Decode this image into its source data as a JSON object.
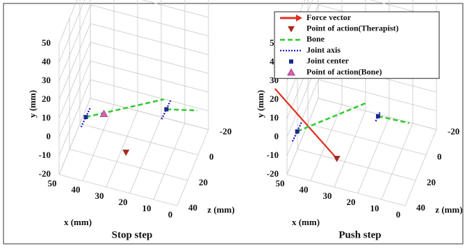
{
  "chart_data": [
    {
      "type": "scatter3d",
      "title": "Stop step",
      "xlabel": "x (mm)",
      "ylabel": "y (mm)",
      "zlabel": "z (mm)",
      "xlim": [
        0,
        50
      ],
      "ylim": [
        -20,
        50
      ],
      "zlim": [
        -20,
        40
      ],
      "xticks": [
        0,
        10,
        20,
        30,
        40,
        50
      ],
      "yticks": [
        -20,
        -10,
        0,
        10,
        20,
        30,
        40,
        50
      ],
      "zticks": [
        -20,
        0,
        20,
        40
      ],
      "series": [
        {
          "name": "Point of action(Therapist)",
          "color": "#a52a1e",
          "marker": "v",
          "x": [
            25
          ],
          "y": [
            -10
          ],
          "z": [
            25
          ]
        },
        {
          "name": "Bone",
          "color": "#33cc33",
          "line": "dashed",
          "x": [
            40,
            10,
            null,
            9,
            -3
          ],
          "y": [
            10,
            20,
            null,
            15,
            15
          ],
          "z": [
            34,
            20,
            null,
            20,
            15
          ]
        },
        {
          "name": "Joint axis",
          "color": "#2222cc",
          "line": "dotted",
          "x": [
            42,
            38,
            null,
            11,
            7
          ],
          "y": [
            4,
            16,
            null,
            9,
            21
          ],
          "z": [
            34,
            34,
            null,
            20,
            20
          ]
        },
        {
          "name": "Joint center",
          "color": "#1a2a8a",
          "marker": "s",
          "x": [
            40,
            9
          ],
          "y": [
            10,
            15
          ],
          "z": [
            34,
            20
          ]
        },
        {
          "name": "Point of action(Bone)",
          "color": "#e060b0",
          "marker": "^",
          "x": [
            33
          ],
          "y": [
            12
          ],
          "z": [
            31
          ]
        }
      ]
    },
    {
      "type": "scatter3d",
      "title": "Push step",
      "xlabel": "x (mm)",
      "ylabel": "y (mm)",
      "zlabel": "z (mm)",
      "xlim": [
        0,
        50
      ],
      "ylim": [
        -20,
        50
      ],
      "zlim": [
        -20,
        40
      ],
      "xticks": [
        0,
        10,
        20,
        30,
        40,
        50
      ],
      "yticks": [
        -20,
        -10,
        0,
        10,
        20,
        30,
        40,
        50
      ],
      "zticks": [
        -20,
        0,
        20,
        40
      ],
      "legend": "upper right",
      "series": [
        {
          "name": "Force vector",
          "color": "#e03020",
          "line": "arrow",
          "x": [
            54,
            32
          ],
          "y": [
            28,
            -15
          ],
          "z": [
            45,
            26
          ]
        },
        {
          "name": "Point of action(Therapist)",
          "color": "#a52a1e",
          "marker": "v",
          "x": [
            32
          ],
          "y": [
            -15
          ],
          "z": [
            26
          ]
        },
        {
          "name": "Bone",
          "color": "#33cc33",
          "line": "dashed",
          "x": [
            47,
            19,
            null,
            15,
            2
          ],
          "y": [
            0,
            20,
            null,
            12,
            12
          ],
          "z": [
            34,
            27,
            null,
            24,
            23
          ]
        },
        {
          "name": "Joint axis",
          "color": "#2222cc",
          "line": "dotted",
          "x": [
            49,
            45,
            null,
            16,
            14
          ],
          "y": [
            -6,
            6,
            null,
            9,
            15
          ],
          "z": [
            34,
            34,
            null,
            24,
            24
          ]
        },
        {
          "name": "Joint center",
          "color": "#1a2a8a",
          "marker": "s",
          "x": [
            47,
            15
          ],
          "y": [
            0,
            12
          ],
          "z": [
            34,
            24
          ]
        },
        {
          "name": "Point of action(Bone)",
          "color": "#e060b0",
          "marker": "^",
          "x": [],
          "y": [],
          "z": []
        }
      ]
    }
  ]
}
